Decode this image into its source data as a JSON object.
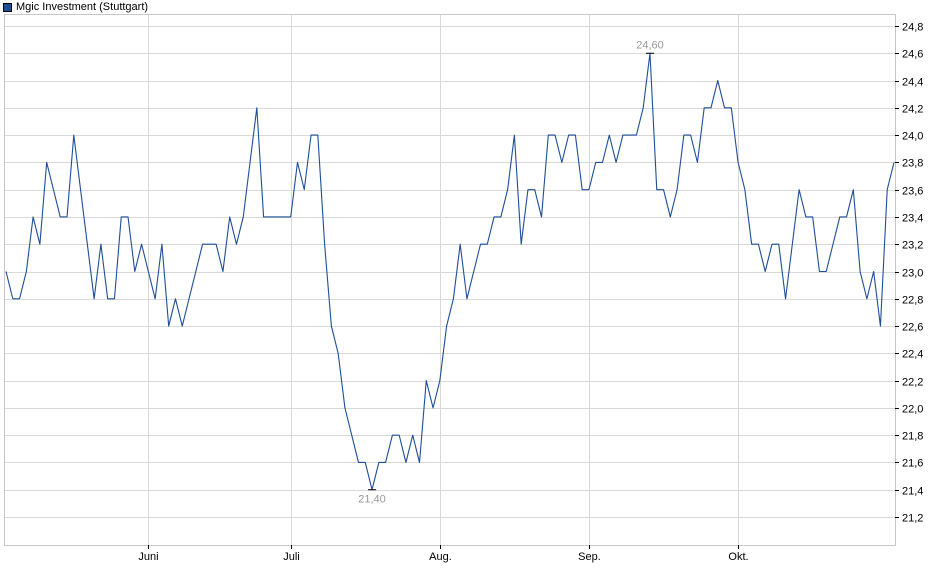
{
  "chart_data": {
    "type": "line",
    "legend": "Mgic Investment (Stuttgart)",
    "series_color": "#1f4e99",
    "grid": true,
    "legend_position": "top-left",
    "ylim": [
      21.0,
      24.9
    ],
    "yticks": [
      21.2,
      21.4,
      21.6,
      21.8,
      22.0,
      22.2,
      22.4,
      22.6,
      22.8,
      23.0,
      23.2,
      23.4,
      23.6,
      23.8,
      24.0,
      24.2,
      24.4,
      24.6,
      24.8
    ],
    "ytick_labels": [
      "21,2",
      "21,4",
      "21,6",
      "21,8",
      "22,0",
      "22,2",
      "22,4",
      "22,6",
      "22,8",
      "23,0",
      "23,2",
      "23,4",
      "23,6",
      "23,8",
      "24,0",
      "24,2",
      "24,4",
      "24,6",
      "24,8"
    ],
    "xtick_labels": [
      "Juni",
      "Juli",
      "Aug.",
      "Sep.",
      "Okt."
    ],
    "xtick_index": [
      21,
      42,
      64,
      86,
      108
    ],
    "values": [
      23.0,
      22.8,
      22.8,
      23.0,
      23.4,
      23.2,
      23.8,
      23.6,
      23.4,
      23.4,
      24.0,
      23.6,
      23.2,
      22.8,
      23.2,
      22.8,
      22.8,
      23.4,
      23.4,
      23.0,
      23.2,
      23.0,
      22.8,
      23.2,
      22.6,
      22.8,
      22.6,
      22.8,
      23.0,
      23.2,
      23.2,
      23.2,
      23.0,
      23.4,
      23.2,
      23.4,
      23.8,
      24.2,
      23.4,
      23.4,
      23.4,
      23.4,
      23.4,
      23.8,
      23.6,
      24.0,
      24.0,
      23.2,
      22.6,
      22.4,
      22.0,
      21.8,
      21.6,
      21.6,
      21.4,
      21.6,
      21.6,
      21.8,
      21.8,
      21.6,
      21.8,
      21.6,
      22.2,
      22.0,
      22.2,
      22.6,
      22.8,
      23.2,
      22.8,
      23.0,
      23.2,
      23.2,
      23.4,
      23.4,
      23.6,
      24.0,
      23.2,
      23.6,
      23.6,
      23.4,
      24.0,
      24.0,
      23.8,
      24.0,
      24.0,
      23.6,
      23.6,
      23.8,
      23.8,
      24.0,
      23.8,
      24.0,
      24.0,
      24.0,
      24.2,
      24.6,
      23.6,
      23.6,
      23.4,
      23.6,
      24.0,
      24.0,
      23.8,
      24.2,
      24.2,
      24.4,
      24.2,
      24.2,
      23.8,
      23.6,
      23.2,
      23.2,
      23.0,
      23.2,
      23.2,
      22.8,
      23.2,
      23.6,
      23.4,
      23.4,
      23.0,
      23.0,
      23.2,
      23.4,
      23.4,
      23.6,
      23.0,
      22.8,
      23.0,
      22.6,
      23.6,
      23.8
    ],
    "annotations": [
      {
        "label": "24,60",
        "index": 95,
        "value": 24.6,
        "side": "above"
      },
      {
        "label": "21,40",
        "index": 54,
        "value": 21.4,
        "side": "below"
      }
    ]
  }
}
